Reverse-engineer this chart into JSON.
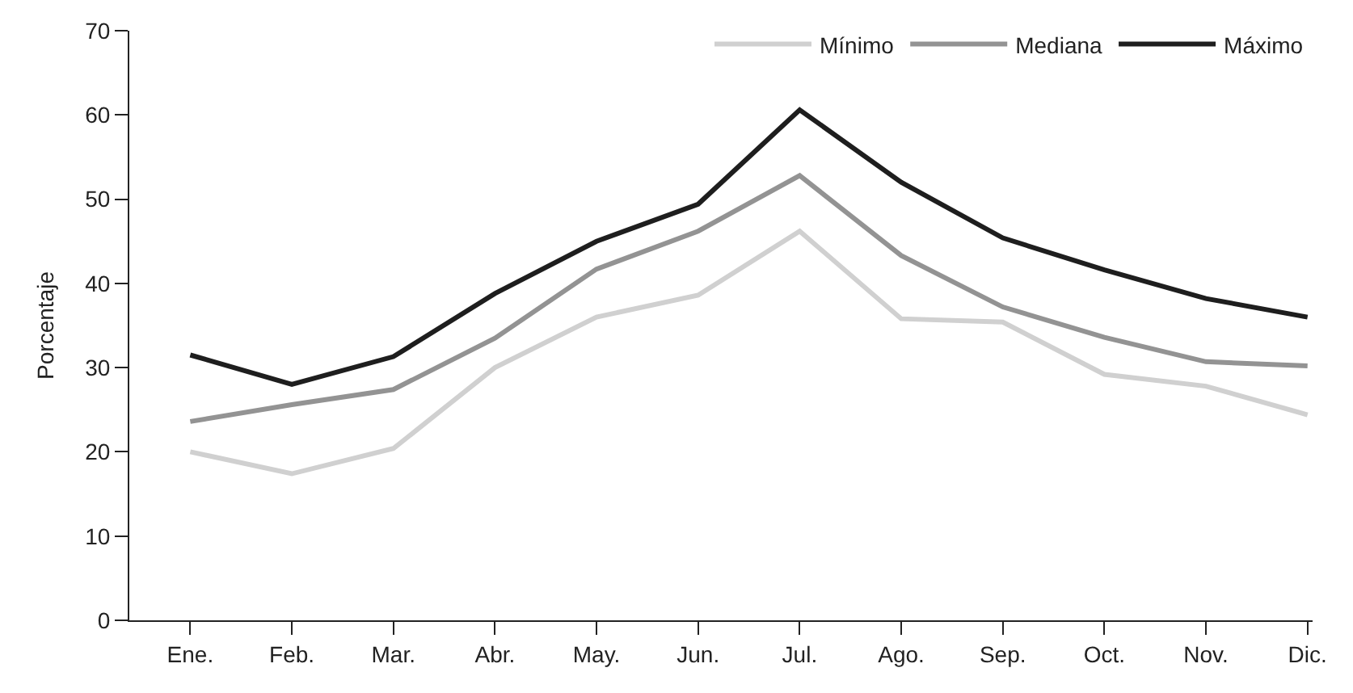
{
  "chart_data": {
    "type": "line",
    "ylabel": "Porcentaje",
    "categories": [
      "Ene.",
      "Feb.",
      "Mar.",
      "Abr.",
      "May.",
      "Jun.",
      "Jul.",
      "Ago.",
      "Sep.",
      "Oct.",
      "Nov.",
      "Dic."
    ],
    "series": [
      {
        "name": "Mínimo",
        "color": "#d0d0d0",
        "values": [
          20,
          17.4,
          20.4,
          30,
          36,
          38.6,
          46.2,
          35.8,
          35.4,
          29.2,
          27.8,
          24.4
        ]
      },
      {
        "name": "Mediana",
        "color": "#939393",
        "values": [
          23.6,
          25.6,
          27.4,
          33.5,
          41.7,
          46.2,
          52.8,
          43.3,
          37.2,
          33.6,
          30.7,
          30.2
        ]
      },
      {
        "name": "Máximo",
        "color": "#1e1e1e",
        "values": [
          31.5,
          28,
          31.3,
          38.8,
          45,
          49.4,
          60.6,
          52,
          45.4,
          41.6,
          38.2,
          36
        ]
      }
    ],
    "ylim": [
      0,
      70
    ],
    "yticks": [
      0,
      10,
      20,
      30,
      40,
      50,
      60,
      70
    ],
    "legend": "top right",
    "marker": "none",
    "line_style": "solid"
  }
}
